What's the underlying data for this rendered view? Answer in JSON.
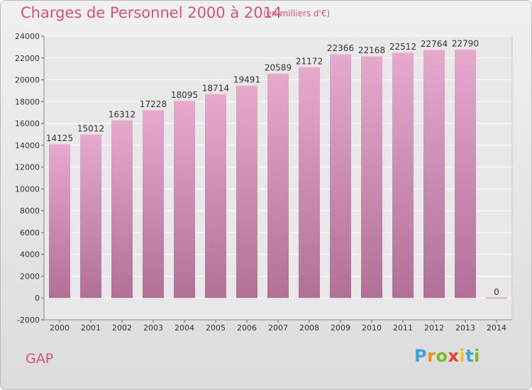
{
  "header": {
    "title": "Charges de Personnel 2000 à 2014",
    "subtitle": "(en milliers d'€)"
  },
  "location": "GAP",
  "logo": {
    "text": "Proxiti",
    "colors": [
      "#3aa3dc",
      "#f28c1a",
      "#7dbb2c",
      "#e8422c",
      "#f2c41a",
      "#3aa3dc",
      "#7dbb2c"
    ]
  },
  "colors": {
    "bar_top": "#e6a9cd",
    "bar_bottom": "#b27096",
    "text": "#d65080"
  },
  "chart_data": {
    "type": "bar",
    "title": "Charges de Personnel 2000 à 2014",
    "subtitle": "(en milliers d'€)",
    "categories": [
      "2000",
      "2001",
      "2002",
      "2003",
      "2004",
      "2005",
      "2006",
      "2007",
      "2008",
      "2009",
      "2010",
      "2011",
      "2012",
      "2013",
      "2014"
    ],
    "values": [
      14125,
      15012,
      16312,
      17228,
      18095,
      18714,
      19491,
      20589,
      21172,
      22366,
      22168,
      22512,
      22764,
      22790,
      0
    ],
    "data_labels": [
      "14125",
      "15012",
      "16312",
      "17228",
      "18095",
      "18714",
      "19491",
      "20589",
      "21172",
      "22366",
      "22168",
      "22512",
      "22764",
      "22790",
      "0"
    ],
    "ylim": [
      -2000,
      24000
    ],
    "yticks": [
      -2000,
      0,
      2000,
      4000,
      6000,
      8000,
      10000,
      12000,
      14000,
      16000,
      18000,
      20000,
      22000,
      24000
    ],
    "ytick_labels": [
      "-2000",
      "0",
      "2000",
      "4000",
      "6000",
      "8000",
      "10000",
      "12000",
      "14000",
      "16000",
      "18000",
      "20000",
      "22000",
      "24000"
    ],
    "grid": true,
    "legend": "none"
  }
}
